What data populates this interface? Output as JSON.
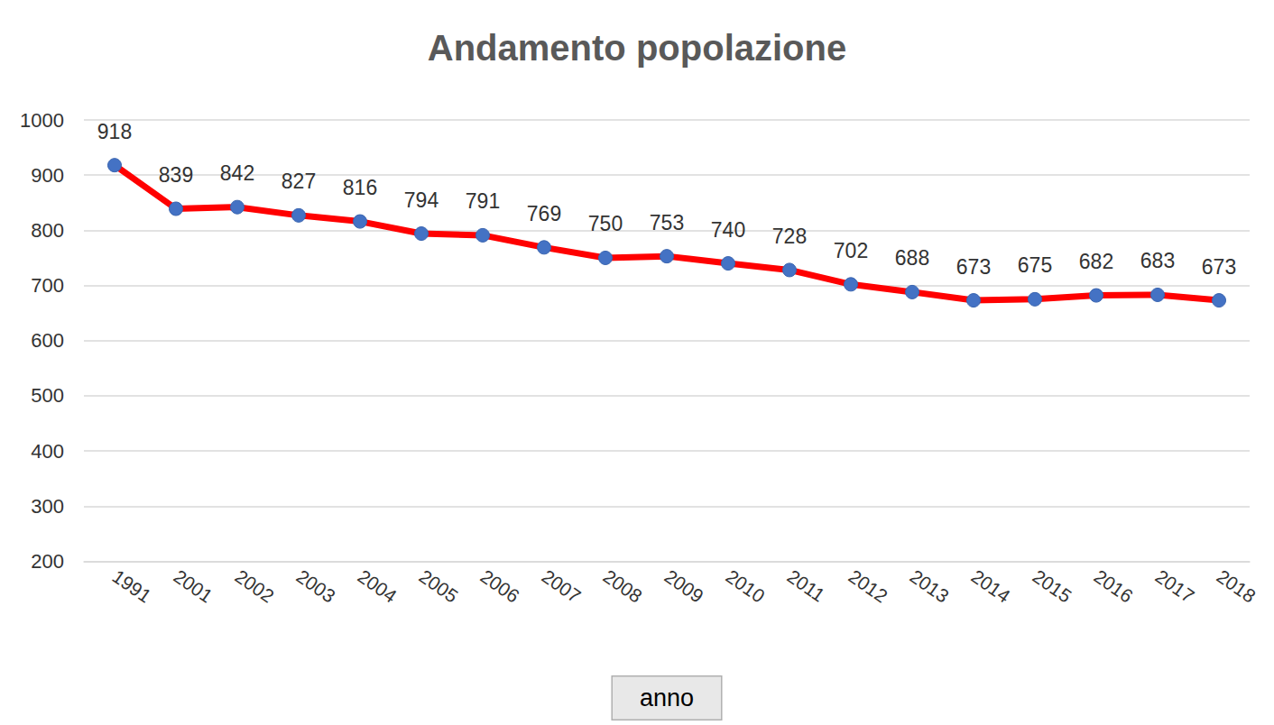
{
  "chart_data": {
    "type": "line",
    "title": "Andamento popolazione",
    "xlabel": "anno",
    "categories": [
      "1991",
      "2001",
      "2002",
      "2003",
      "2004",
      "2005",
      "2006",
      "2007",
      "2008",
      "2009",
      "2010",
      "2011",
      "2012",
      "2013",
      "2014",
      "2015",
      "2016",
      "2017",
      "2018"
    ],
    "values": [
      918,
      839,
      842,
      827,
      816,
      794,
      791,
      769,
      750,
      753,
      740,
      728,
      702,
      688,
      673,
      675,
      682,
      683,
      673
    ],
    "color": "#ff0000",
    "marker": "circle",
    "ylim": [
      200,
      1000
    ],
    "yticks": [
      200,
      300,
      400,
      500,
      600,
      700,
      800,
      900,
      1000
    ],
    "grid": true,
    "data_labels": true
  }
}
